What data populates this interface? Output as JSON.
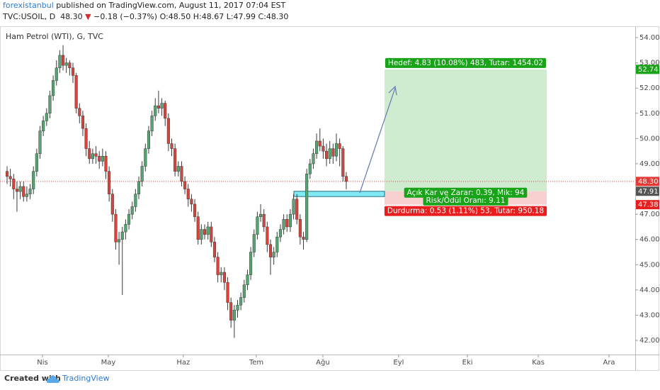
{
  "header": {
    "author": "forexistanbul",
    "published": "published on TradingView.com, August 11, 2017 07:04 EST",
    "symbol": "TVC:USOIL, D",
    "last": "48.30",
    "arrow": "▼",
    "change": "−0.18 (−0.37%)",
    "ohlc": "O:48.50 H:48.67 L:47.99 C:48.30"
  },
  "chart_data": {
    "type": "candlestick",
    "legend": "Ham Petrol (WTI), G, TVC",
    "open": [
      48.7,
      48.5,
      48.4,
      48.0,
      47.9,
      48.1,
      47.7,
      47.8,
      48.0,
      48.7,
      49.4,
      50.3,
      50.7,
      51.0,
      51.7,
      52.3,
      52.8,
      53.3,
      52.9,
      53.0,
      52.8,
      52.5,
      51.2,
      50.9,
      50.4,
      49.6,
      49.2,
      49.4,
      49.3,
      49.1,
      49.3,
      48.7,
      47.8,
      47.0,
      45.9,
      46.0,
      46.3,
      46.6,
      47.0,
      47.3,
      47.8,
      48.3,
      48.9,
      49.6,
      50.3,
      50.9,
      51.3,
      51.2,
      51.4,
      50.8,
      49.8,
      49.6,
      48.7,
      48.9,
      48.3,
      48.0,
      47.6,
      47.4,
      46.9,
      46.0,
      46.4,
      46.2,
      46.5,
      45.9,
      45.3,
      44.6,
      44.7,
      44.3,
      43.5,
      42.8,
      43.2,
      43.4,
      43.7,
      44.2,
      44.6,
      45.5,
      46.2,
      46.9,
      47.0,
      46.5,
      45.8,
      45.3,
      45.5,
      46.1,
      46.4,
      46.8,
      46.5,
      47.0,
      47.6,
      46.8,
      46.1,
      46.0,
      48.6,
      49.0,
      49.4,
      49.9,
      49.7,
      49.5,
      49.2,
      49.6,
      49.3,
      49.8,
      49.6,
      48.5
    ],
    "high": [
      48.9,
      48.8,
      48.6,
      48.3,
      48.3,
      48.3,
      48.1,
      48.2,
      48.9,
      49.6,
      50.5,
      50.9,
      51.2,
      51.9,
      52.5,
      53.1,
      53.5,
      53.7,
      53.2,
      53.1,
      53.0,
      52.6,
      51.4,
      51.1,
      50.6,
      49.9,
      49.6,
      49.7,
      49.5,
      49.6,
      49.5,
      48.9,
      48.0,
      47.2,
      46.3,
      46.5,
      46.8,
      47.2,
      47.5,
      48.0,
      48.5,
      49.1,
      49.8,
      50.5,
      51.1,
      51.6,
      51.9,
      51.6,
      51.5,
      51.0,
      50.0,
      49.8,
      49.1,
      49.1,
      48.5,
      48.2,
      47.8,
      47.6,
      47.1,
      46.6,
      46.6,
      46.7,
      46.7,
      46.1,
      45.5,
      44.9,
      44.9,
      44.5,
      43.7,
      43.4,
      43.6,
      43.9,
      44.4,
      44.8,
      45.7,
      46.4,
      47.1,
      47.4,
      47.2,
      46.7,
      46.0,
      45.7,
      46.3,
      46.6,
      47.0,
      47.0,
      47.2,
      47.8,
      47.8,
      47.0,
      46.3,
      48.8,
      49.2,
      49.6,
      50.2,
      50.4,
      50.0,
      49.8,
      49.9,
      49.8,
      50.2,
      50.0,
      49.7,
      48.67
    ],
    "low": [
      48.2,
      48.1,
      47.6,
      47.1,
      47.6,
      47.5,
      47.5,
      47.6,
      47.8,
      48.5,
      49.2,
      50.1,
      50.5,
      50.8,
      51.5,
      52.1,
      52.6,
      52.7,
      52.6,
      52.5,
      52.2,
      51.0,
      50.6,
      50.1,
      49.3,
      49.0,
      49.0,
      49.0,
      48.8,
      48.9,
      48.4,
      47.5,
      46.7,
      45.6,
      45.0,
      43.8,
      46.0,
      46.4,
      46.8,
      47.1,
      47.6,
      48.1,
      48.7,
      49.4,
      50.1,
      50.7,
      51.0,
      50.9,
      50.5,
      49.5,
      49.3,
      48.5,
      48.5,
      48.1,
      47.8,
      47.3,
      47.1,
      46.7,
      45.8,
      45.8,
      46.0,
      46.0,
      45.7,
      45.1,
      44.3,
      44.3,
      44.0,
      43.2,
      42.5,
      42.1,
      42.9,
      43.2,
      43.5,
      44.0,
      44.4,
      45.3,
      46.0,
      46.7,
      46.3,
      45.5,
      44.6,
      45.0,
      45.3,
      45.9,
      46.2,
      46.3,
      46.3,
      46.8,
      46.6,
      45.8,
      45.6,
      45.9,
      48.4,
      48.8,
      49.2,
      49.5,
      49.2,
      48.9,
      49.0,
      49.0,
      49.1,
      48.9,
      48.3,
      47.99
    ],
    "close": [
      48.5,
      48.4,
      48.0,
      47.9,
      48.1,
      47.7,
      47.8,
      48.0,
      48.7,
      49.4,
      50.3,
      50.7,
      51.0,
      51.7,
      52.3,
      52.8,
      53.3,
      52.9,
      53.0,
      52.8,
      52.5,
      51.2,
      50.9,
      50.4,
      49.6,
      49.2,
      49.4,
      49.3,
      49.1,
      49.3,
      48.7,
      47.8,
      47.0,
      45.9,
      46.0,
      46.3,
      46.6,
      47.0,
      47.3,
      47.8,
      48.3,
      48.9,
      49.6,
      50.3,
      50.9,
      51.3,
      51.2,
      51.4,
      50.8,
      49.8,
      49.6,
      48.7,
      48.9,
      48.3,
      48.0,
      47.6,
      47.4,
      46.9,
      46.0,
      46.4,
      46.2,
      46.5,
      45.9,
      45.3,
      44.6,
      44.7,
      44.3,
      43.5,
      42.8,
      43.2,
      43.4,
      43.7,
      44.2,
      44.6,
      45.5,
      46.2,
      46.9,
      47.0,
      46.5,
      45.8,
      45.3,
      45.5,
      46.1,
      46.4,
      46.8,
      46.5,
      47.0,
      47.6,
      46.8,
      46.1,
      46.0,
      48.6,
      49.0,
      49.4,
      49.9,
      49.7,
      49.5,
      49.2,
      49.6,
      49.3,
      49.8,
      49.6,
      48.5,
      48.3
    ],
    "up_color": "#53a66f",
    "down_color": "#d6453d",
    "xlim": [
      -2.15,
      190.75
    ],
    "xticks": [
      {
        "value": 10.75,
        "label": "Nis"
      },
      {
        "value": 30.75,
        "label": "May"
      },
      {
        "value": 53.5,
        "label": "Haz"
      },
      {
        "value": 75.7,
        "label": "Tem"
      },
      {
        "value": 95.9,
        "label": "Ağu"
      },
      {
        "value": 118.9,
        "label": "Eyl"
      },
      {
        "value": 139.8,
        "label": "Eki"
      },
      {
        "value": 161.3,
        "label": "Kas"
      },
      {
        "value": 182.8,
        "label": "Ara"
      }
    ],
    "ylim": [
      41.44,
      54.31
    ],
    "yticks": [
      {
        "value": 54,
        "label": "54.00"
      },
      {
        "value": 53,
        "label": "53.00"
      },
      {
        "value": 52,
        "label": "52.00"
      },
      {
        "value": 51,
        "label": "51.00"
      },
      {
        "value": 50,
        "label": "50.00"
      },
      {
        "value": 49,
        "label": "49.00"
      },
      {
        "value": 47,
        "label": "47.00"
      },
      {
        "value": 46,
        "label": "46.00"
      },
      {
        "value": 45,
        "label": "45.00"
      },
      {
        "value": 44,
        "label": "44.00"
      },
      {
        "value": 43,
        "label": "43.00"
      },
      {
        "value": 42,
        "label": "42.00"
      }
    ],
    "last_price": {
      "value": 48.3,
      "label": "48.30",
      "color": "#e53935"
    },
    "zone": [
      47.7,
      47.91
    ],
    "position": {
      "target": {
        "value": 52.74,
        "label": "52.74"
      },
      "entry": {
        "value": 47.91,
        "label": "47.91"
      },
      "stop": {
        "value": 47.38,
        "label": "47.38"
      },
      "target_text": "Hedef: 4.83 (10.08%) 483, Tutar: 1454.02",
      "pl_text": "Açık Kar ve Zarar: 0.39, Mik: 94",
      "rr_text": "Risk/Ödül Oranı: 9.11",
      "stop_text": "Durdurma: 0.53 (1.11%) 53, Tutar: 950.18"
    }
  },
  "footer": {
    "created": "Created with",
    "brand": "TradingView"
  }
}
